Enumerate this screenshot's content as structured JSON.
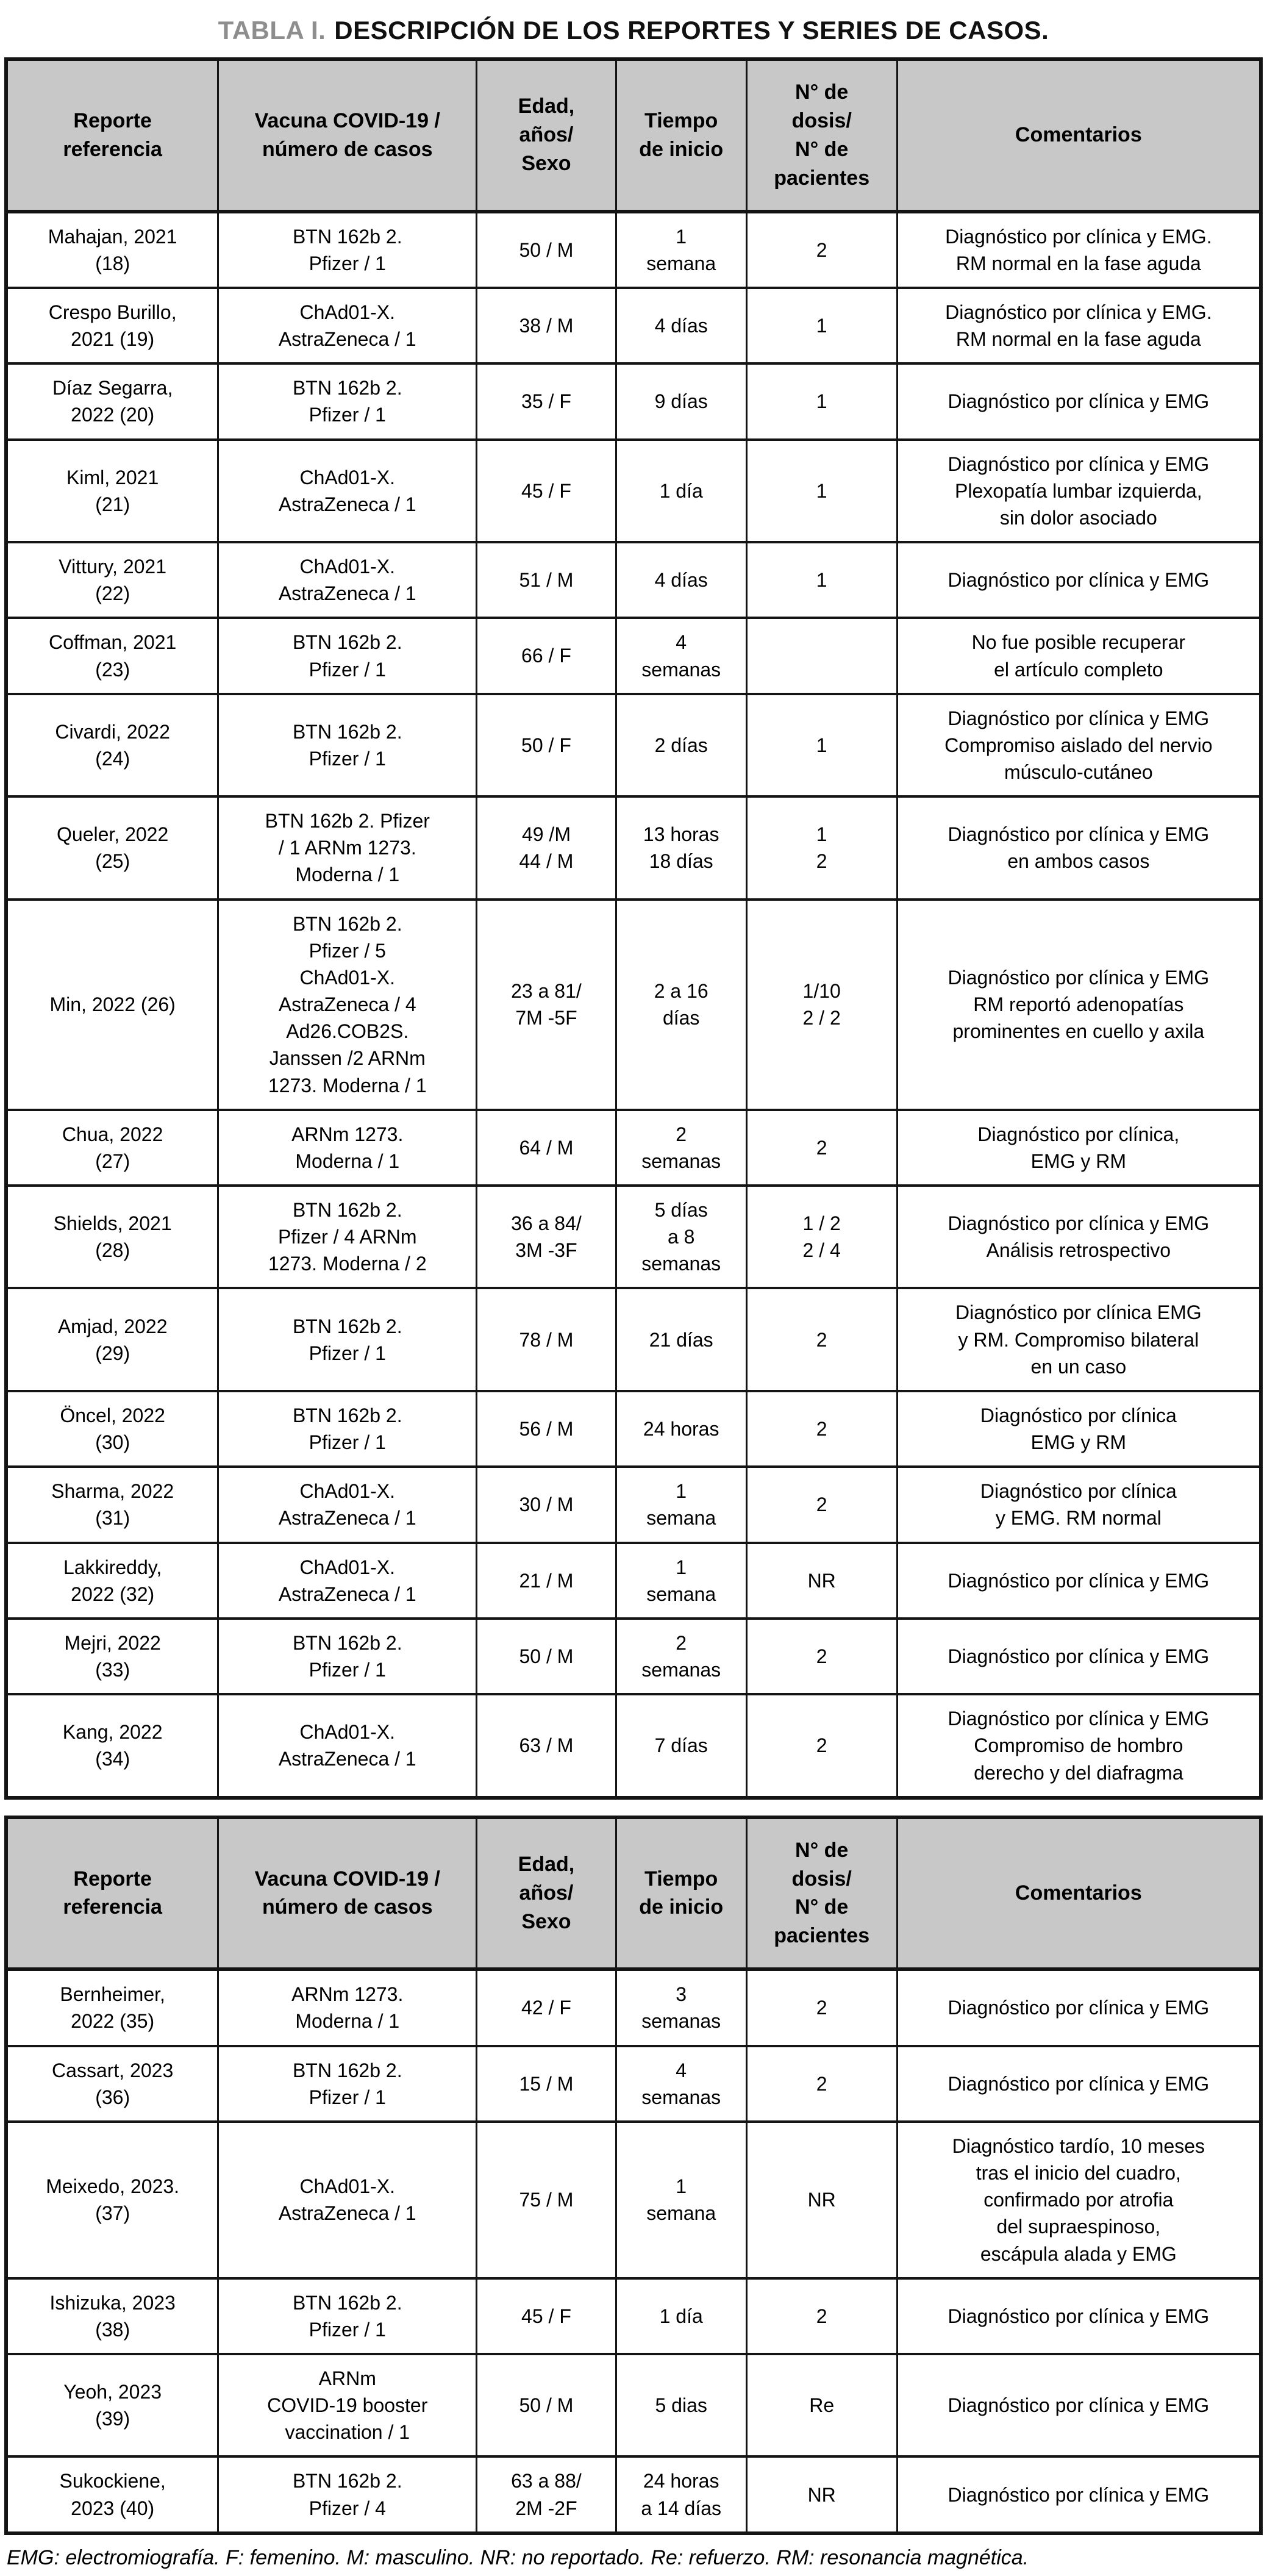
{
  "title": {
    "label": "TABLA I.",
    "rest": "DESCRIPCIÓN DE LOS REPORTES Y SERIES DE CASOS."
  },
  "colors": {
    "title_label_gray": "#8e8e8e",
    "header_bg": "#c8c8c8",
    "border": "#141414",
    "text": "#000000"
  },
  "columns": [
    "Reporte\nreferencia",
    "Vacuna COVID-19 /\nnúmero de casos",
    "Edad,\naños/\nSexo",
    "Tiempo\nde inicio",
    "N° de\ndosis/\nN° de\npacientes",
    "Comentarios"
  ],
  "table1": {
    "rows": [
      [
        "Mahajan, 2021\n(18)",
        "BTN 162b 2.\nPfizer / 1",
        "50 / M",
        "1\nsemana",
        "2",
        "Diagnóstico por clínica y EMG.\nRM normal en la fase aguda"
      ],
      [
        "Crespo Burillo,\n2021 (19)",
        "ChAd01-X.\nAstraZeneca / 1",
        "38 / M",
        "4 días",
        "1",
        "Diagnóstico por clínica y EMG.\nRM normal en la fase aguda"
      ],
      [
        "Díaz Segarra,\n2022 (20)",
        "BTN 162b 2.\nPfizer / 1",
        "35 / F",
        "9 días",
        "1",
        "Diagnóstico por clínica y EMG"
      ],
      [
        "Kiml, 2021\n(21)",
        "ChAd01-X.\nAstraZeneca / 1",
        "45 / F",
        "1 día",
        "1",
        "Diagnóstico por clínica y EMG\nPlexopatía lumbar izquierda,\nsin dolor asociado"
      ],
      [
        "Vittury, 2021\n(22)",
        "ChAd01-X.\nAstraZeneca / 1",
        "51 / M",
        "4 días",
        "1",
        "Diagnóstico por clínica y EMG"
      ],
      [
        "Coffman, 2021\n(23)",
        "BTN 162b 2.\nPfizer / 1",
        "66 / F",
        "4\nsemanas",
        "",
        "No fue posible recuperar\nel artículo completo"
      ],
      [
        "Civardi, 2022\n(24)",
        "BTN 162b 2.\nPfizer / 1",
        "50 / F",
        "2 días",
        "1",
        "Diagnóstico por clínica y EMG\nCompromiso aislado del nervio\nmúsculo-cutáneo"
      ],
      [
        "Queler, 2022\n(25)",
        "BTN 162b 2. Pfizer\n/ 1 ARNm 1273.\nModerna / 1",
        "49 /M\n44 / M",
        "13 horas\n18 días",
        "1\n2",
        "Diagnóstico por clínica y EMG\nen ambos casos"
      ],
      [
        "Min, 2022 (26)",
        "BTN 162b 2.\nPfizer / 5\nChAd01-X.\nAstraZeneca / 4\nAd26.COB2S.\nJanssen /2 ARNm\n1273. Moderna / 1",
        "23 a 81/\n7M -5F",
        "2 a 16\ndías",
        "1/10\n2 / 2",
        "Diagnóstico por clínica y EMG\nRM reportó adenopatías\nprominentes en cuello y axila"
      ],
      [
        "Chua, 2022\n(27)",
        "ARNm 1273.\nModerna / 1",
        "64 / M",
        "2\nsemanas",
        "2",
        "Diagnóstico por clínica,\nEMG y RM"
      ],
      [
        "Shields, 2021\n(28)",
        "BTN 162b 2.\nPfizer / 4 ARNm\n1273. Moderna / 2",
        "36 a 84/\n3M -3F",
        "5 días\na 8\nsemanas",
        "1 / 2\n2 / 4",
        "Diagnóstico por clínica y EMG\nAnálisis retrospectivo"
      ],
      [
        "Amjad, 2022\n(29)",
        "BTN 162b 2.\nPfizer / 1",
        "78 / M",
        "21 días",
        "2",
        "Diagnóstico por clínica EMG\ny RM. Compromiso bilateral\nen un caso"
      ],
      [
        "Öncel, 2022\n(30)",
        "BTN 162b 2.\nPfizer / 1",
        "56 / M",
        "24 horas",
        "2",
        "Diagnóstico por clínica\nEMG y RM"
      ],
      [
        "Sharma, 2022\n(31)",
        "ChAd01-X.\nAstraZeneca / 1",
        "30 / M",
        "1\nsemana",
        "2",
        "Diagnóstico por clínica\ny EMG. RM normal"
      ],
      [
        "Lakkireddy,\n2022 (32)",
        "ChAd01-X.\nAstraZeneca / 1",
        "21 / M",
        "1\nsemana",
        "NR",
        "Diagnóstico por clínica y EMG"
      ],
      [
        "Mejri, 2022\n(33)",
        "BTN 162b 2.\nPfizer / 1",
        "50 / M",
        "2\nsemanas",
        "2",
        "Diagnóstico por clínica y EMG"
      ],
      [
        "Kang, 2022\n(34)",
        "ChAd01-X.\nAstraZeneca / 1",
        "63 / M",
        "7 días",
        "2",
        "Diagnóstico por clínica y EMG\nCompromiso de hombro\nderecho y del diafragma"
      ]
    ]
  },
  "table2": {
    "rows": [
      [
        "Bernheimer,\n2022 (35)",
        "ARNm 1273.\nModerna / 1",
        "42 / F",
        "3\nsemanas",
        "2",
        "Diagnóstico por clínica y EMG"
      ],
      [
        "Cassart, 2023\n(36)",
        "BTN 162b 2.\nPfizer / 1",
        "15 / M",
        "4\nsemanas",
        "2",
        "Diagnóstico por clínica y EMG"
      ],
      [
        "Meixedo, 2023.\n(37)",
        "ChAd01-X.\nAstraZeneca / 1",
        "75 / M",
        "1\nsemana",
        "NR",
        "Diagnóstico tardío, 10 meses\ntras el inicio del cuadro,\nconfirmado por atrofia\ndel supraespinoso,\nescápula alada y EMG"
      ],
      [
        "Ishizuka, 2023\n(38)",
        "BTN 162b 2.\nPfizer / 1",
        "45 / F",
        "1 día",
        "2",
        "Diagnóstico por clínica y EMG"
      ],
      [
        "Yeoh, 2023\n(39)",
        "ARNm\nCOVID-19 booster\nvaccination / 1",
        "50 / M",
        "5 dias",
        "Re",
        "Diagnóstico por clínica y EMG"
      ],
      [
        "Sukockiene,\n2023 (40)",
        "BTN 162b 2.\nPfizer / 4",
        "63 a 88/\n2M -2F",
        "24 horas\na 14 días",
        "NR",
        "Diagnóstico por clínica y EMG"
      ]
    ]
  },
  "footnote": "EMG: electromiografía. F: femenino. M: masculino. NR: no reportado. Re: refuerzo. RM: resonancia magnética."
}
